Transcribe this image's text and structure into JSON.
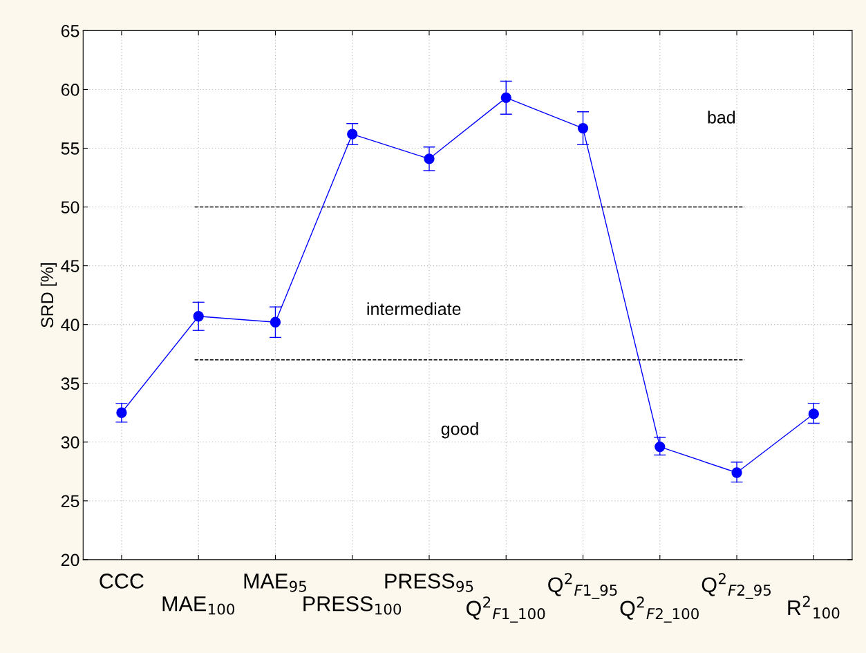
{
  "chart_data": {
    "type": "line",
    "ylabel": "SRD [%]",
    "categories": [
      "CCC",
      "MAE$_{100}$",
      "MAE$_{95}$",
      "PRESS$_{100}$",
      "PRESS$_{95}$",
      "Q$^{2}$$_{F1_100}$",
      "Q$^{2}$$_{F1_95}$",
      "Q$^{2}$$_{F2_100}$",
      "Q$^{2}$$_{F2_95}$",
      "R$^{2}$$_{100}$"
    ],
    "series": [
      {
        "color": "#0000ff",
        "values": [
          32.5,
          40.7,
          40.2,
          56.2,
          54.1,
          59.3,
          56.7,
          29.6,
          27.4,
          32.4
        ],
        "errors": [
          [
            31.7,
            33.3
          ],
          [
            39.5,
            41.9
          ],
          [
            38.9,
            41.5
          ],
          [
            55.3,
            57.1
          ],
          [
            53.1,
            55.1
          ],
          [
            57.9,
            60.7
          ],
          [
            55.3,
            58.1
          ],
          [
            28.9,
            30.4
          ],
          [
            26.6,
            28.3
          ],
          [
            31.6,
            33.3
          ]
        ]
      }
    ],
    "ylim": [
      20,
      65
    ],
    "yticks": [
      20,
      25,
      30,
      35,
      40,
      45,
      50,
      55,
      60,
      65
    ],
    "ref_lines": [
      {
        "axis": "y",
        "value": 50,
        "color": "#000000",
        "line_style": "dashed"
      },
      {
        "axis": "y",
        "value": 37,
        "color": "#000000",
        "line_style": "dashed"
      }
    ],
    "annotations": [
      "bad",
      "intermediate",
      "good"
    ],
    "grid": true,
    "marker": "circle",
    "line_style": "solid",
    "legend": false
  }
}
